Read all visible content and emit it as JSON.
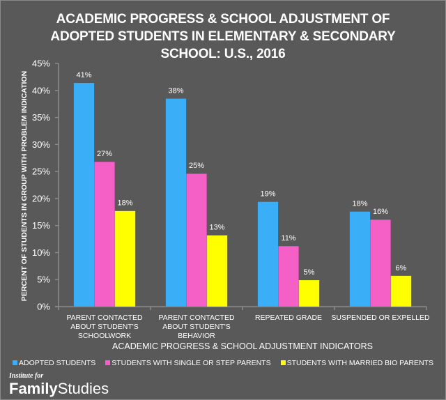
{
  "chart_data": {
    "type": "bar",
    "title": [
      "ACADEMIC PROGRESS & SCHOOL ADJUSTMENT OF",
      "ADOPTED STUDENTS IN ELEMENTARY & SECONDARY",
      "SCHOOL: U.S., 2016"
    ],
    "xlabel": "ACADEMIC PROGRESS & SCHOOL ADJUSTMENT INDICATORS",
    "ylabel": "PERCENT OF STUDENTS IN GROUP WITH PROBLEM INDICATION",
    "ylim": [
      0,
      45
    ],
    "yticks": [
      0,
      5,
      10,
      15,
      20,
      25,
      30,
      35,
      40,
      45
    ],
    "ytick_labels": [
      "0%",
      "5%",
      "10%",
      "15%",
      "20%",
      "25%",
      "30%",
      "35%",
      "40%",
      "45%"
    ],
    "grid": false,
    "legend_position": "bottom",
    "categories": [
      [
        "PARENT CONTACTED",
        "ABOUT STUDENT'S",
        "SCHOOLWORK"
      ],
      [
        "PARENT CONTACTED",
        "ABOUT STUDENT'S",
        "BEHAVIOR"
      ],
      [
        "REPEATED GRADE"
      ],
      [
        "SUSPENDED OR EXPELLED"
      ]
    ],
    "series": [
      {
        "name": "ADOPTED STUDENTS",
        "color": "#3aaef6",
        "values": [
          41.4,
          38.5,
          19.4,
          17.6
        ],
        "labels": [
          "41%",
          "38%",
          "19%",
          "18%"
        ]
      },
      {
        "name": "STUDENTS WITH SINGLE OR STEP PARENTS",
        "color": "#f560c6",
        "values": [
          26.8,
          24.6,
          11.2,
          16.1
        ],
        "labels": [
          "27%",
          "25%",
          "11%",
          "16%"
        ]
      },
      {
        "name": "STUDENTS WITH MARRIED BIO PARENTS",
        "color": "#ffff00",
        "values": [
          17.7,
          13.2,
          4.9,
          5.7
        ],
        "labels": [
          "18%",
          "13%",
          "5%",
          "6%"
        ]
      }
    ]
  },
  "logo": {
    "small": "Institute for",
    "bold": "Family",
    "regular": "Studies"
  },
  "colors": {
    "background": "#595959",
    "axis": "#8c8c8c",
    "text": "#ffffff"
  }
}
